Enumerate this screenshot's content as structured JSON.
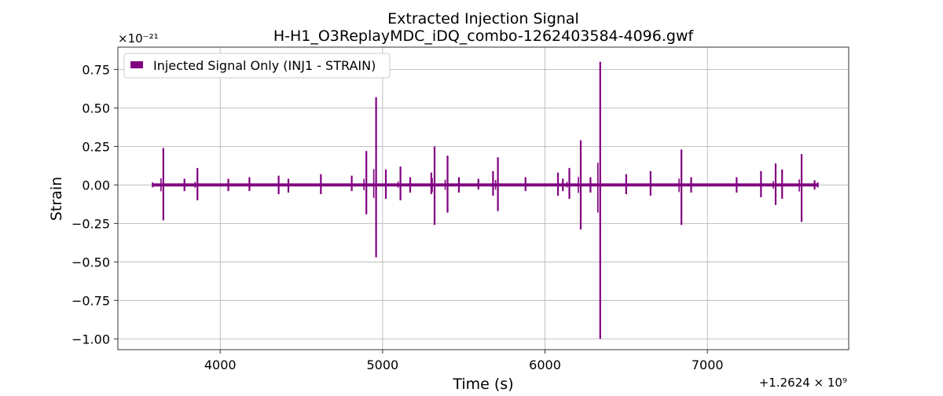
{
  "chart_data": {
    "type": "line",
    "title": "Extracted Injection Signal",
    "subtitle": "H-H1_O3ReplayMDC_iDQ_combo-1262403584-4096.gwf",
    "xlabel": "Time (s)",
    "ylabel": "Strain",
    "x_offset_label": "+1.2624 × 10⁹",
    "y_scale_label": "×10⁻²¹",
    "xlim": [
      3370,
      7870
    ],
    "ylim": [
      -1.07,
      0.895
    ],
    "x_ticks": [
      4000,
      5000,
      6000,
      7000
    ],
    "x_tick_labels": [
      "4000",
      "5000",
      "6000",
      "7000"
    ],
    "y_ticks": [
      0.75,
      0.5,
      0.25,
      0.0,
      -0.25,
      -0.5,
      -0.75,
      -1.0
    ],
    "y_tick_labels": [
      "0.75",
      "0.50",
      "0.25",
      "0.00",
      "−0.25",
      "−0.50",
      "−0.75",
      "−1.00"
    ],
    "grid": true,
    "legend": {
      "placement": "top-left",
      "entries": [
        "Injected Signal Only (INJ1 - STRAIN)"
      ]
    },
    "series": [
      {
        "name": "Injected Signal Only (INJ1 - STRAIN)",
        "color": "#800080",
        "x_range": [
          3584,
          7680
        ],
        "baseline_amplitude": 0.01,
        "spikes": [
          {
            "x": 3650,
            "max": 0.24,
            "min": -0.23
          },
          {
            "x": 3780,
            "max": 0.04,
            "min": -0.04
          },
          {
            "x": 3860,
            "max": 0.11,
            "min": -0.1
          },
          {
            "x": 4050,
            "max": 0.04,
            "min": -0.04
          },
          {
            "x": 4180,
            "max": 0.05,
            "min": -0.04
          },
          {
            "x": 4360,
            "max": 0.06,
            "min": -0.06
          },
          {
            "x": 4420,
            "max": 0.04,
            "min": -0.05
          },
          {
            "x": 4620,
            "max": 0.07,
            "min": -0.06
          },
          {
            "x": 4810,
            "max": 0.06,
            "min": -0.04
          },
          {
            "x": 4900,
            "max": 0.22,
            "min": -0.19
          },
          {
            "x": 4960,
            "max": 0.57,
            "min": -0.47
          },
          {
            "x": 5020,
            "max": 0.1,
            "min": -0.09
          },
          {
            "x": 5110,
            "max": 0.12,
            "min": -0.1
          },
          {
            "x": 5170,
            "max": 0.05,
            "min": -0.05
          },
          {
            "x": 5300,
            "max": 0.08,
            "min": -0.06
          },
          {
            "x": 5320,
            "max": 0.25,
            "min": -0.26
          },
          {
            "x": 5400,
            "max": 0.19,
            "min": -0.18
          },
          {
            "x": 5470,
            "max": 0.05,
            "min": -0.05
          },
          {
            "x": 5590,
            "max": 0.04,
            "min": -0.03
          },
          {
            "x": 5680,
            "max": 0.09,
            "min": -0.07
          },
          {
            "x": 5710,
            "max": 0.18,
            "min": -0.17
          },
          {
            "x": 5880,
            "max": 0.05,
            "min": -0.04
          },
          {
            "x": 6080,
            "max": 0.08,
            "min": -0.07
          },
          {
            "x": 6110,
            "max": 0.04,
            "min": -0.04
          },
          {
            "x": 6150,
            "max": 0.11,
            "min": -0.09
          },
          {
            "x": 6220,
            "max": 0.29,
            "min": -0.29
          },
          {
            "x": 6280,
            "max": 0.05,
            "min": -0.05
          },
          {
            "x": 6340,
            "max": 0.8,
            "min": -1.0
          },
          {
            "x": 6500,
            "max": 0.07,
            "min": -0.06
          },
          {
            "x": 6650,
            "max": 0.09,
            "min": -0.07
          },
          {
            "x": 6840,
            "max": 0.23,
            "min": -0.26
          },
          {
            "x": 6900,
            "max": 0.05,
            "min": -0.05
          },
          {
            "x": 7180,
            "max": 0.05,
            "min": -0.05
          },
          {
            "x": 7330,
            "max": 0.09,
            "min": -0.08
          },
          {
            "x": 7420,
            "max": 0.14,
            "min": -0.13
          },
          {
            "x": 7460,
            "max": 0.1,
            "min": -0.09
          },
          {
            "x": 7580,
            "max": 0.2,
            "min": -0.24
          },
          {
            "x": 7660,
            "max": 0.03,
            "min": -0.03
          }
        ]
      }
    ]
  }
}
